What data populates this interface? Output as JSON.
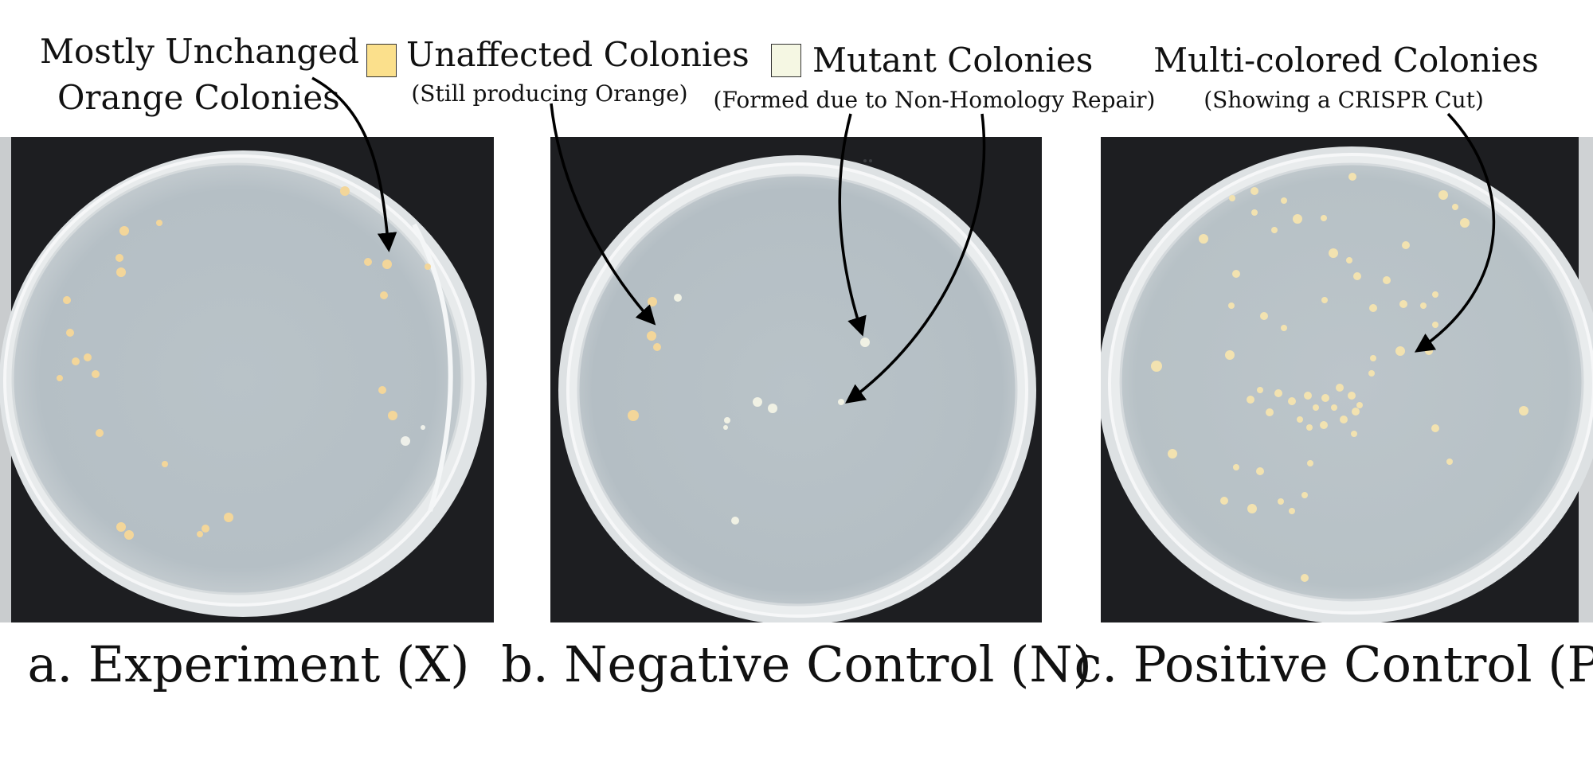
{
  "annotations": {
    "left_line1": "Mostly Unchanged",
    "left_line2": "Orange Colonies",
    "unaffected_title": "Unaffected Colonies",
    "unaffected_sub": "(Still producing Orange)",
    "mutant_title": "Mutant Colonies",
    "mutant_sub": "(Formed due to Non-Homology Repair)",
    "multi_title": "Multi-colored Colonies",
    "multi_sub": "(Showing a CRISPR Cut)"
  },
  "legend_colors": {
    "unaffected": "#fbe08c",
    "mutant": "#f5f7e3"
  },
  "captions": {
    "a": "a. Experiment (X)",
    "b": "b. Negative Control (N)",
    "c": "c. Positive Control (P)"
  }
}
